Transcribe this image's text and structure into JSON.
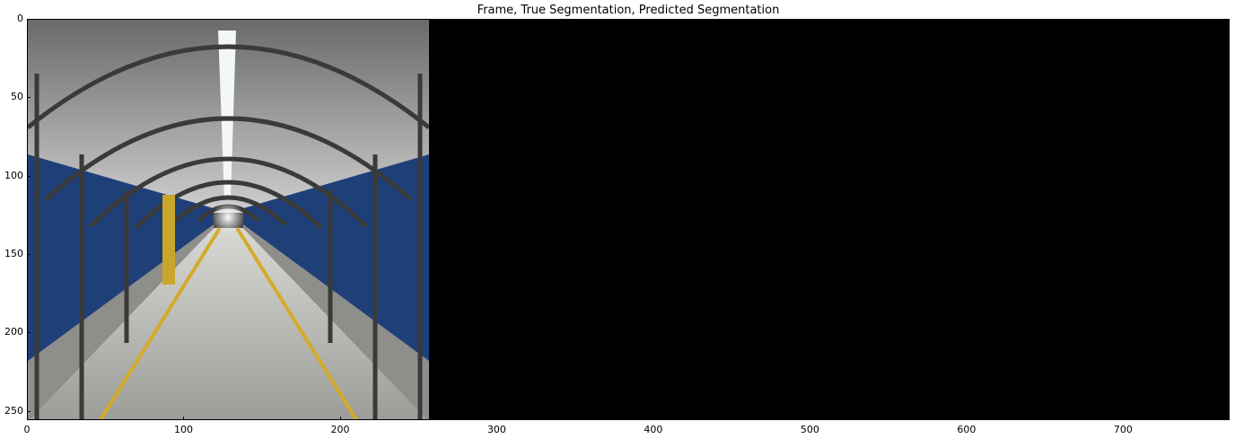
{
  "title": "Frame, True Segmentation, Predicted Segmentation",
  "x_ticks": [
    "0",
    "100",
    "200",
    "300",
    "400",
    "500",
    "600",
    "700"
  ],
  "y_ticks": [
    "0",
    "50",
    "100",
    "150",
    "200",
    "250"
  ],
  "panels": [
    "frame-image",
    "true-segmentation",
    "predicted-segmentation"
  ],
  "colors": {
    "panel_background": "#000000",
    "tunnel_blue": "#1f3f78",
    "floor": "#b9b9b5",
    "stripe": "#d6a928"
  }
}
